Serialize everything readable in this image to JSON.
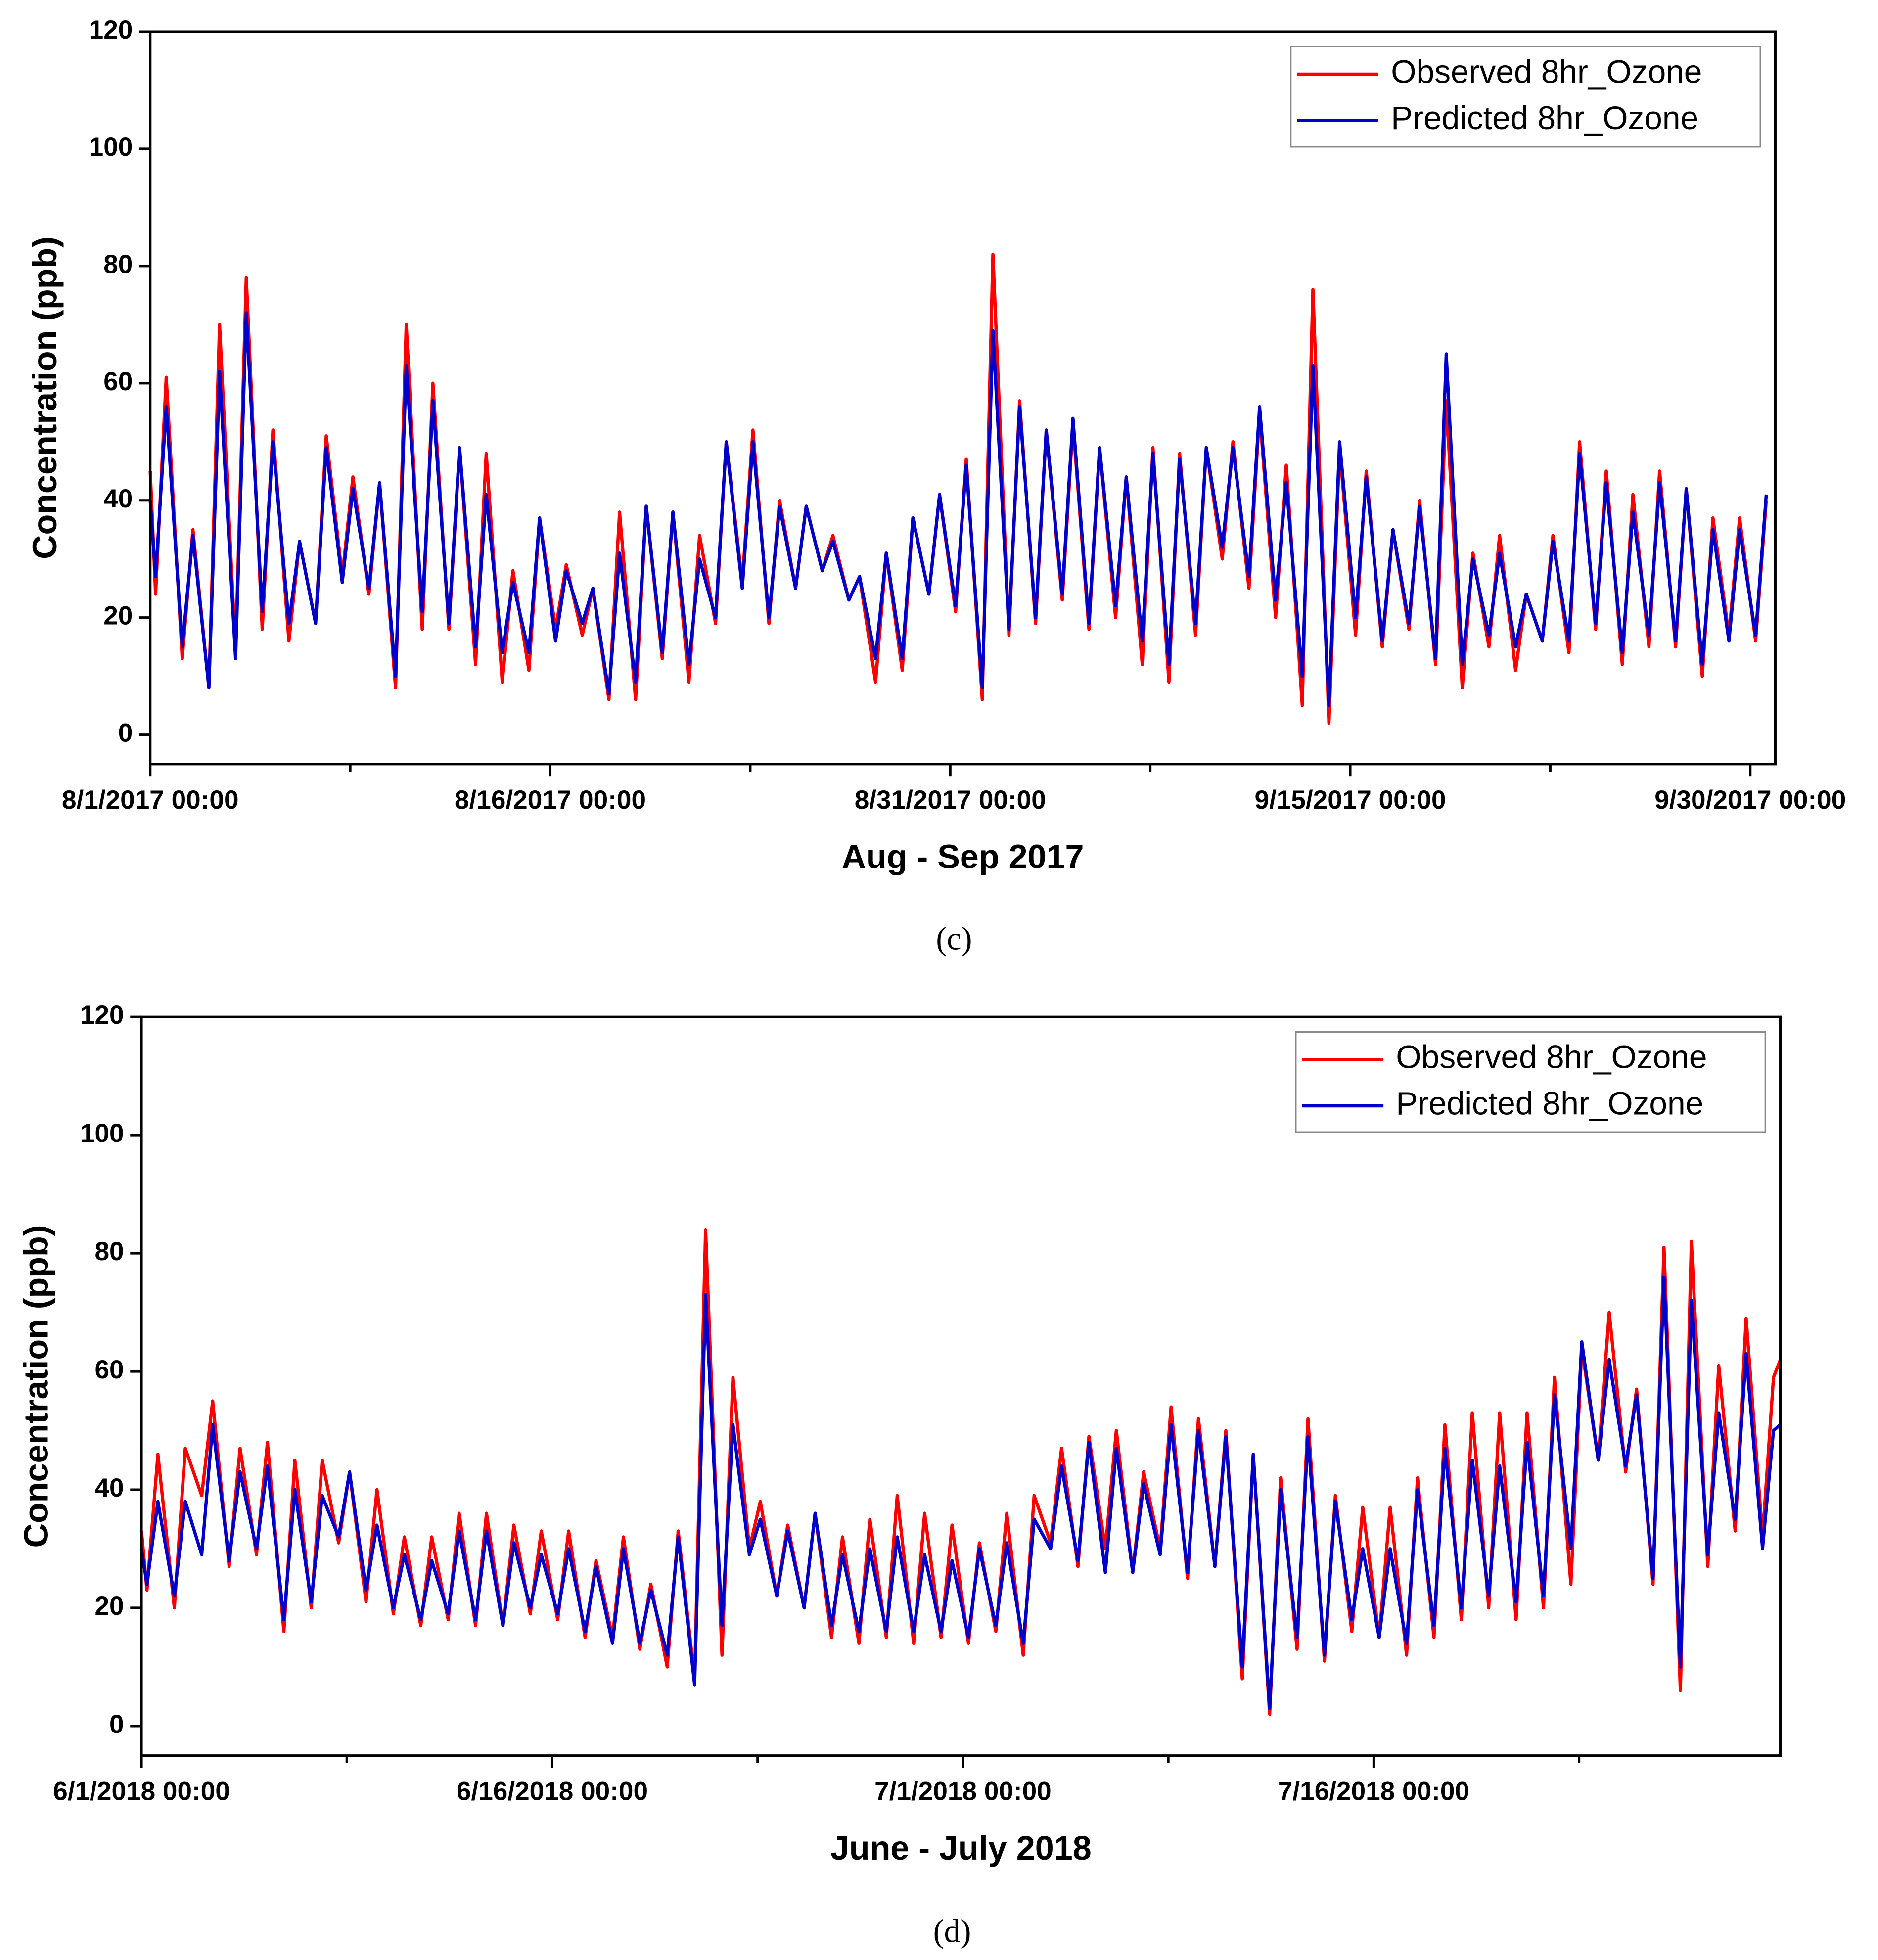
{
  "chart_data": [
    {
      "type": "line",
      "panel_label": "(c)",
      "xlabel": "Aug - Sep 2017",
      "ylabel": "Concentration (ppb)",
      "xlim": [
        0,
        60.94
      ],
      "ylim": [
        -5,
        120
      ],
      "xticks": [
        {
          "value": 0,
          "label": "8/1/2017 00:00"
        },
        {
          "value": 15,
          "label": "8/16/2017 00:00"
        },
        {
          "value": 30,
          "label": "8/31/2017 00:00"
        },
        {
          "value": 45,
          "label": "9/15/2017 00:00"
        },
        {
          "value": 60,
          "label": "9/30/2017 00:00"
        }
      ],
      "xminor_ticks": [
        7.5,
        22.5,
        37.5,
        52.5
      ],
      "yticks": [
        0,
        20,
        40,
        60,
        80,
        100,
        120
      ],
      "legend": "upper right",
      "x": [
        0,
        0.2,
        0.6,
        1.2,
        1.6,
        2.2,
        2.6,
        3.2,
        3.6,
        4.2,
        4.6,
        5.2,
        5.6,
        6.2,
        6.6,
        7.2,
        7.6,
        8.2,
        8.6,
        9.2,
        9.6,
        10.2,
        10.6,
        11.2,
        11.6,
        12.2,
        12.6,
        13.2,
        13.6,
        14.2,
        14.6,
        15.2,
        15.6,
        16.2,
        16.6,
        17.2,
        17.6,
        18.2,
        18.6,
        19.2,
        19.6,
        20.2,
        20.6,
        21.2,
        21.6,
        22.2,
        22.6,
        23.2,
        23.6,
        24.2,
        24.6,
        25.2,
        25.6,
        26.2,
        26.6,
        27.2,
        27.6,
        28.2,
        28.6,
        29.2,
        29.6,
        30.2,
        30.6,
        31.2,
        31.6,
        32.2,
        32.6,
        33.2,
        33.6,
        34.2,
        34.6,
        35.2,
        35.6,
        36.2,
        36.6,
        37.2,
        37.6,
        38.2,
        38.6,
        39.2,
        39.6,
        40.2,
        40.6,
        41.2,
        41.6,
        42.2,
        42.6,
        43.2,
        43.6,
        44.2,
        44.6,
        45.2,
        45.6,
        46.2,
        46.6,
        47.2,
        47.6,
        48.2,
        48.6,
        49.2,
        49.6,
        50.2,
        50.6,
        51.2,
        51.6,
        52.2,
        52.6,
        53.2,
        53.6,
        54.2,
        54.6,
        55.2,
        55.6,
        56.2,
        56.6,
        57.2,
        57.6,
        58.2,
        58.6,
        59.2,
        59.6,
        60.2,
        60.6
      ],
      "series": [
        {
          "name": "Observed 8hr_Ozone",
          "color": "#ff0000",
          "values": [
            45,
            24,
            61,
            13,
            35,
            8,
            70,
            14,
            78,
            18,
            52,
            16,
            33,
            19,
            51,
            27,
            44,
            24,
            43,
            8,
            70,
            18,
            60,
            18,
            49,
            12,
            48,
            9,
            28,
            11,
            37,
            18,
            29,
            17,
            25,
            6,
            38,
            6,
            39,
            13,
            38,
            9,
            34,
            19,
            50,
            26,
            52,
            19,
            40,
            25,
            39,
            28,
            34,
            23,
            27,
            9,
            31,
            11,
            37,
            24,
            41,
            21,
            47,
            6,
            82,
            17,
            57,
            19,
            52,
            23,
            53,
            18,
            49,
            20,
            44,
            12,
            49,
            9,
            48,
            17,
            49,
            30,
            50,
            25,
            55,
            20,
            46,
            5,
            76,
            2,
            49,
            17,
            45,
            15,
            35,
            18,
            40,
            12,
            57,
            8,
            31,
            15,
            34,
            11,
            24,
            16,
            34,
            14,
            50,
            18,
            45,
            12,
            41,
            15,
            45,
            15,
            42,
            10,
            37,
            17,
            37,
            16,
            40
          ]
        },
        {
          "name": "Predicted 8hr_Ozone",
          "color": "#0000cc",
          "values": [
            40,
            27,
            56,
            15,
            34,
            8,
            62,
            13,
            72,
            21,
            50,
            19,
            33,
            19,
            49,
            26,
            42,
            25,
            43,
            10,
            63,
            21,
            57,
            19,
            49,
            15,
            41,
            14,
            26,
            14,
            37,
            16,
            28,
            19,
            25,
            7,
            31,
            9,
            39,
            14,
            38,
            12,
            30,
            20,
            50,
            25,
            50,
            20,
            39,
            25,
            39,
            28,
            33,
            23,
            27,
            13,
            31,
            13,
            37,
            24,
            41,
            22,
            46,
            8,
            69,
            18,
            56,
            20,
            52,
            24,
            54,
            19,
            49,
            22,
            44,
            16,
            48,
            12,
            47,
            19,
            49,
            32,
            49,
            27,
            56,
            23,
            43,
            10,
            63,
            5,
            50,
            20,
            44,
            16,
            35,
            19,
            39,
            13,
            65,
            12,
            30,
            17,
            31,
            15,
            24,
            16,
            33,
            16,
            48,
            19,
            43,
            14,
            38,
            17,
            43,
            16,
            42,
            12,
            35,
            16,
            35,
            17,
            41
          ]
        }
      ]
    },
    {
      "type": "line",
      "panel_label": "(d)",
      "xlabel": "June - July 2018",
      "ylabel": "Concentration (ppb)",
      "xlim": [
        0,
        59.85
      ],
      "ylim": [
        -5,
        120
      ],
      "xticks": [
        {
          "value": 0,
          "label": "6/1/2018 00:00"
        },
        {
          "value": 15,
          "label": "6/16/2018 00:00"
        },
        {
          "value": 30,
          "label": "7/1/2018 00:00"
        },
        {
          "value": 45,
          "label": "7/16/2018 00:00"
        }
      ],
      "xminor_ticks": [
        7.5,
        22.5,
        37.5,
        52.5
      ],
      "yticks": [
        0,
        20,
        40,
        60,
        80,
        100,
        120
      ],
      "legend": "upper right",
      "x": [
        0,
        0.2,
        0.6,
        1.2,
        1.6,
        2.2,
        2.6,
        3.2,
        3.6,
        4.2,
        4.6,
        5.2,
        5.6,
        6.2,
        6.6,
        7.2,
        7.6,
        8.2,
        8.6,
        9.2,
        9.6,
        10.2,
        10.6,
        11.2,
        11.6,
        12.2,
        12.6,
        13.2,
        13.6,
        14.2,
        14.6,
        15.2,
        15.6,
        16.2,
        16.6,
        17.2,
        17.6,
        18.2,
        18.6,
        19.2,
        19.6,
        20.2,
        20.6,
        21.2,
        21.6,
        22.2,
        22.6,
        23.2,
        23.6,
        24.2,
        24.6,
        25.2,
        25.6,
        26.2,
        26.6,
        27.2,
        27.6,
        28.2,
        28.6,
        29.2,
        29.6,
        30.2,
        30.6,
        31.2,
        31.6,
        32.2,
        32.6,
        33.2,
        33.6,
        34.2,
        34.6,
        35.2,
        35.6,
        36.2,
        36.6,
        37.2,
        37.6,
        38.2,
        38.6,
        39.2,
        39.6,
        40.2,
        40.6,
        41.2,
        41.6,
        42.2,
        42.6,
        43.2,
        43.6,
        44.2,
        44.6,
        45.2,
        45.6,
        46.2,
        46.6,
        47.2,
        47.6,
        48.2,
        48.6,
        49.2,
        49.6,
        50.2,
        50.6,
        51.2,
        51.6,
        52.2,
        52.6,
        53.2,
        53.6,
        54.2,
        54.6,
        55.2,
        55.6,
        56.2,
        56.6,
        57.2,
        57.6,
        58.2,
        58.6,
        59.2,
        59.6,
        59.85
      ],
      "series": [
        {
          "name": "Observed 8hr_Ozone",
          "color": "#ff0000",
          "values": [
            33,
            23,
            46,
            20,
            47,
            39,
            55,
            27,
            47,
            29,
            48,
            16,
            45,
            20,
            45,
            31,
            43,
            21,
            40,
            19,
            32,
            17,
            32,
            18,
            36,
            17,
            36,
            17,
            34,
            19,
            33,
            18,
            33,
            15,
            28,
            15,
            32,
            13,
            24,
            10,
            33,
            8,
            84,
            12,
            59,
            30,
            38,
            22,
            34,
            20,
            36,
            15,
            32,
            14,
            35,
            15,
            39,
            14,
            36,
            15,
            34,
            14,
            31,
            16,
            36,
            12,
            39,
            31,
            47,
            27,
            49,
            30,
            50,
            26,
            43,
            30,
            54,
            25,
            52,
            27,
            50,
            8,
            46,
            2,
            42,
            13,
            52,
            11,
            39,
            16,
            37,
            15,
            37,
            12,
            42,
            15,
            51,
            18,
            53,
            20,
            53,
            18,
            53,
            20,
            59,
            24,
            64,
            45,
            70,
            43,
            57,
            24,
            81,
            6,
            82,
            27,
            61,
            33,
            69,
            32,
            59,
            62
          ]
        },
        {
          "name": "Predicted 8hr_Ozone",
          "color": "#0000cc",
          "values": [
            30,
            24,
            38,
            22,
            38,
            29,
            51,
            28,
            43,
            30,
            44,
            18,
            40,
            21,
            39,
            32,
            43,
            23,
            34,
            20,
            29,
            18,
            28,
            19,
            33,
            18,
            33,
            17,
            31,
            20,
            29,
            19,
            30,
            16,
            27,
            14,
            30,
            14,
            23,
            12,
            32,
            7,
            73,
            17,
            51,
            29,
            35,
            22,
            33,
            20,
            36,
            17,
            29,
            16,
            30,
            16,
            32,
            16,
            29,
            16,
            28,
            15,
            30,
            17,
            31,
            14,
            35,
            30,
            44,
            28,
            48,
            26,
            47,
            26,
            41,
            29,
            51,
            26,
            50,
            27,
            49,
            10,
            46,
            3,
            40,
            15,
            49,
            12,
            38,
            18,
            30,
            15,
            30,
            14,
            40,
            17,
            47,
            20,
            45,
            22,
            44,
            21,
            48,
            22,
            56,
            30,
            65,
            45,
            62,
            44,
            56,
            25,
            76,
            10,
            72,
            29,
            53,
            35,
            63,
            30,
            50,
            51
          ]
        }
      ]
    }
  ]
}
